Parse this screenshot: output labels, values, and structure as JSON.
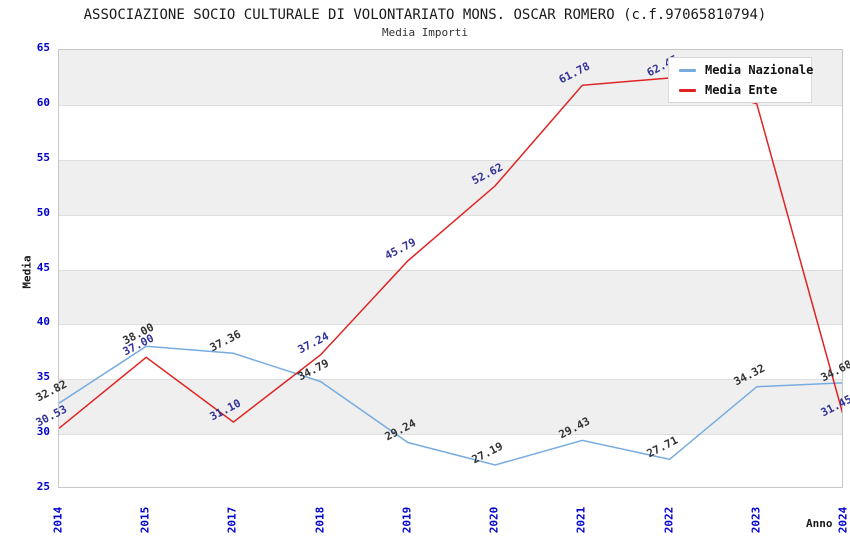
{
  "title": "ASSOCIAZIONE SOCIO CULTURALE DI VOLONTARIATO MONS. OSCAR ROMERO (c.f.97065810794)",
  "subtitle": "Media Importi",
  "colors": {
    "background": "#ffffff",
    "band_gray": "#efefef",
    "grid_line": "#dedede",
    "plot_border": "#c8c8c8",
    "axis_tick_label": "#0000cc",
    "axis_title": "#1a1a1a",
    "nazionale_line": "#78ace1",
    "nazionale_point_label": "#333333",
    "ente_line": "#e02222",
    "ente_point_label": "#333399"
  },
  "legend": {
    "position": "top-right",
    "items": [
      "Media Nazionale",
      "Media Ente"
    ]
  },
  "chart_data": {
    "type": "line",
    "title": "ASSOCIAZIONE SOCIO CULTURALE DI VOLONTARIATO MONS. OSCAR ROMERO (c.f.97065810794)",
    "subtitle": "Media Importi",
    "xlabel": "Anno",
    "ylabel": "Media",
    "categories": [
      "2014",
      "2015",
      "2017",
      "2018",
      "2019",
      "2020",
      "2021",
      "2022",
      "2023",
      "2024"
    ],
    "ylim": [
      25,
      65
    ],
    "yticks": [
      25,
      30,
      35,
      40,
      45,
      50,
      55,
      60,
      65
    ],
    "grid": "horizontal gridlines with alternating gray bands every 5 units",
    "legend_position": "top-right",
    "series": [
      {
        "name": "Media Nazionale",
        "color": "#78ace1",
        "label_color": "#333333",
        "values": [
          32.82,
          38.0,
          37.36,
          34.79,
          29.24,
          27.19,
          29.43,
          27.71,
          34.32,
          34.68
        ],
        "labels": [
          "32.82",
          "38.00",
          "37.36",
          "34.79",
          "29.24",
          "27.19",
          "29.43",
          "27.71",
          "34.32",
          "34.68"
        ]
      },
      {
        "name": "Media Ente",
        "color": "#e02222",
        "label_color": "#333399",
        "values": [
          30.53,
          37.0,
          31.1,
          37.24,
          45.79,
          52.62,
          61.78,
          62.45,
          60.1,
          31.45
        ],
        "labels": [
          "30.53",
          "37.00",
          "31.10",
          "37.24",
          "45.79",
          "52.62",
          "61.78",
          "62.45",
          null,
          "31.45"
        ]
      }
    ]
  }
}
